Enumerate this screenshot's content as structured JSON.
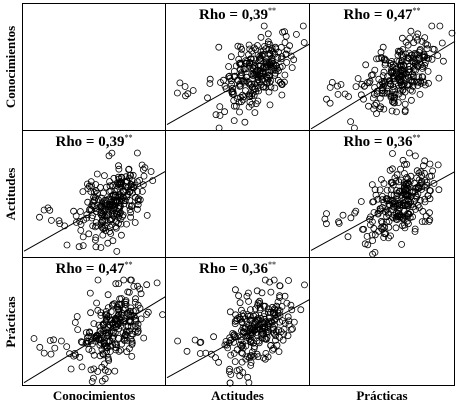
{
  "chart_data": {
    "type": "scatter_matrix",
    "variables": [
      "Conocimientos",
      "Actitudes",
      "Prácticas"
    ],
    "significance_marker": "**",
    "panels": [
      {
        "row": 0,
        "col": 1,
        "rho": "Rho = 0,39",
        "slope": 0.39
      },
      {
        "row": 0,
        "col": 2,
        "rho": "Rho = 0,47",
        "slope": 0.47
      },
      {
        "row": 1,
        "col": 0,
        "rho": "Rho = 0,39",
        "slope": 0.39
      },
      {
        "row": 1,
        "col": 2,
        "rho": "Rho = 0,36",
        "slope": 0.36
      },
      {
        "row": 2,
        "col": 0,
        "rho": "Rho = 0,47",
        "slope": 0.47
      },
      {
        "row": 2,
        "col": 1,
        "rho": "Rho = 0,36",
        "slope": 0.36
      }
    ]
  }
}
